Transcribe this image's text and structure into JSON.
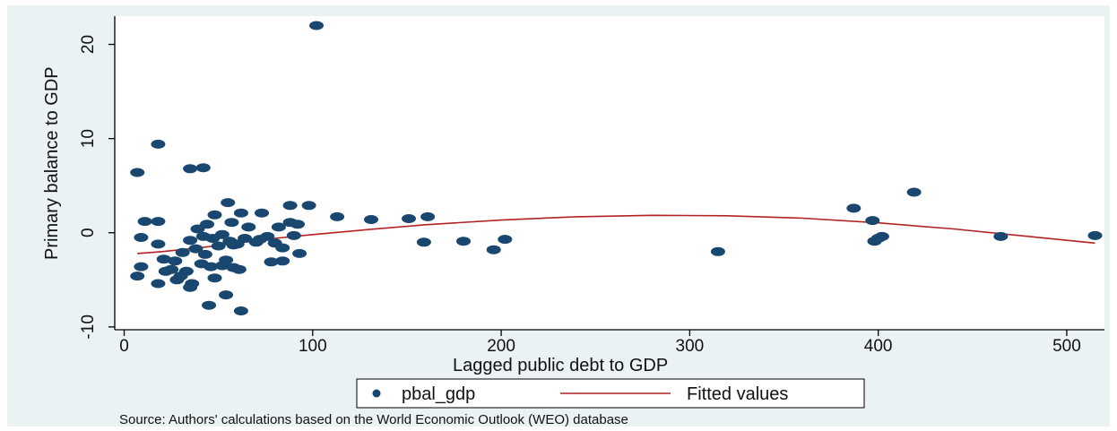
{
  "chart_data": {
    "type": "scatter",
    "title": "",
    "xlabel": "Lagged public debt to GDP",
    "ylabel": "Primary balance to GDP",
    "xlim": [
      -5,
      520
    ],
    "ylim": [
      -10.3,
      23
    ],
    "xticks": [
      "0",
      "100",
      "200",
      "300",
      "400",
      "500"
    ],
    "yticks": [
      "-10",
      "0",
      "10",
      "20"
    ],
    "grid": false,
    "legend": {
      "position": "bottom",
      "entries": [
        "pbal_gdp",
        "Fitted values"
      ]
    },
    "series": [
      {
        "name": "pbal_gdp",
        "kind": "scatter",
        "color": "#1a476f",
        "x": [
          102,
          18,
          7,
          35,
          42,
          55,
          88,
          98,
          113,
          131,
          151,
          161,
          48,
          73,
          82,
          62,
          11,
          18,
          44,
          57,
          66,
          92,
          39,
          9,
          18,
          35,
          42,
          47,
          52,
          58,
          64,
          70,
          76,
          84,
          90,
          21,
          27,
          31,
          38,
          43,
          50,
          56,
          60,
          72,
          80,
          88,
          9,
          25,
          33,
          41,
          46,
          54,
          61,
          78,
          84,
          93,
          7,
          18,
          28,
          35,
          48,
          52,
          58,
          22,
          30,
          36,
          45,
          54,
          62,
          159,
          180,
          196,
          202,
          315,
          387,
          397,
          398,
          400,
          402,
          419,
          465,
          515
        ],
        "y": [
          22,
          9.4,
          6.4,
          6.8,
          6.9,
          3.2,
          2.9,
          2.9,
          1.7,
          1.4,
          1.5,
          1.7,
          1.9,
          2.1,
          0.6,
          2.1,
          1.2,
          1.2,
          0.9,
          1.1,
          0.6,
          0.9,
          0.4,
          -0.5,
          -1.2,
          -0.8,
          -0.4,
          -0.6,
          -0.2,
          -1.3,
          -0.6,
          -1.0,
          -0.4,
          -1.6,
          -0.3,
          -2.8,
          -3.0,
          -2.1,
          -1.7,
          -2.3,
          -1.4,
          -0.9,
          -1.2,
          -0.7,
          -1.1,
          1.1,
          -3.6,
          -3.9,
          -4.1,
          -3.3,
          -3.6,
          -2.9,
          -3.9,
          -3.1,
          -3.0,
          -2.2,
          -4.6,
          -5.4,
          -5.0,
          -5.8,
          -4.8,
          -3.5,
          -3.7,
          -4.1,
          -4.6,
          -5.4,
          -7.7,
          -6.6,
          -8.3,
          -1.0,
          -0.9,
          -1.8,
          -0.7,
          -2.0,
          2.6,
          1.3,
          -0.9,
          -0.6,
          -0.4,
          4.3,
          -0.4,
          -0.3
        ]
      },
      {
        "name": "Fitted values",
        "kind": "line",
        "color": "#b22222",
        "x": [
          7,
          20,
          40,
          60,
          80,
          100,
          130,
          160,
          200,
          240,
          280,
          320,
          360,
          400,
          440,
          480,
          515
        ],
        "y": [
          -2.2,
          -2.0,
          -1.6,
          -1.1,
          -0.6,
          -0.2,
          0.35,
          0.85,
          1.35,
          1.7,
          1.85,
          1.8,
          1.55,
          1.05,
          0.4,
          -0.4,
          -1.1
        ]
      }
    ],
    "source_note": "Source: Authors' calculations based on  the World Economic Outlook (WEO) database"
  }
}
